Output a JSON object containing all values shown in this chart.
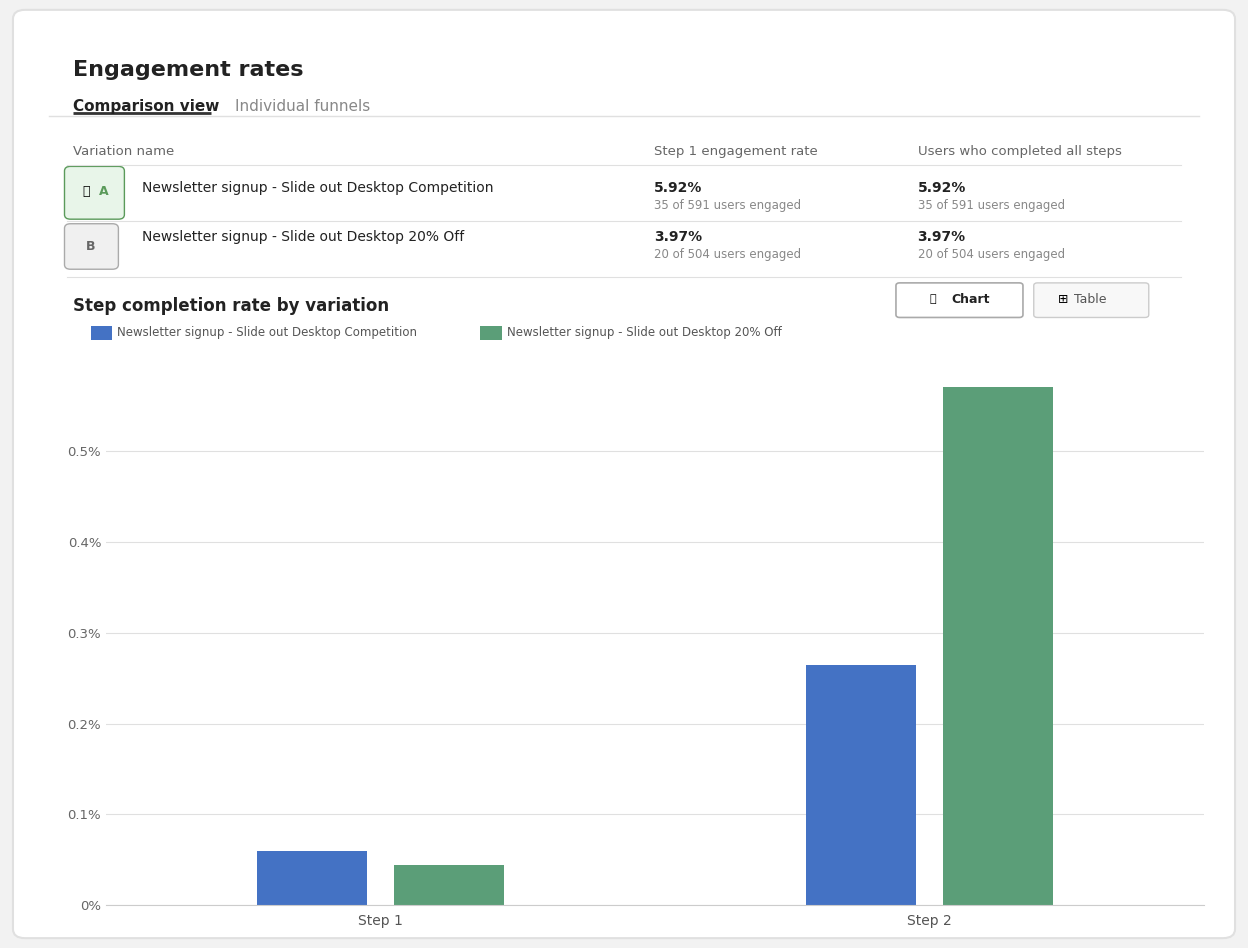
{
  "title": "Engagement rates",
  "tab_active": "Comparison view",
  "tab_inactive": "Individual funnels",
  "table_headers": [
    "Variation name",
    "Step 1 engagement rate",
    "Users who completed all steps"
  ],
  "row_a": {
    "label": "A",
    "name": "Newsletter signup - Slide out Desktop Competition",
    "step1_pct": "5.92%",
    "step1_sub": "35 of 591 users engaged",
    "completed_pct": "5.92%",
    "completed_sub": "35 of 591 users engaged",
    "icon_color": "#5a9a5a",
    "badge_bg": "#e8f5e9"
  },
  "row_b": {
    "label": "B",
    "name": "Newsletter signup - Slide out Desktop 20% Off",
    "step1_pct": "3.97%",
    "step1_sub": "20 of 504 users engaged",
    "completed_pct": "3.97%",
    "completed_sub": "20 of 504 users engaged",
    "icon_color": "#888888",
    "badge_bg": "#f0f0f0"
  },
  "chart_title": "Step completion rate by variation",
  "legend_a": "Newsletter signup - Slide out Desktop Competition",
  "legend_b": "Newsletter signup - Slide out Desktop 20% Off",
  "bar_color_a": "#4472c4",
  "bar_color_b": "#5b9e78",
  "steps": [
    "Step 1",
    "Step 2"
  ],
  "values_a": [
    0.0006,
    0.00265
  ],
  "values_b": [
    0.00044,
    0.0057
  ],
  "yticks": [
    0.0,
    0.001,
    0.002,
    0.003,
    0.004,
    0.005
  ],
  "ytick_labels": [
    "0%",
    "0.1%",
    "0.2%",
    "0.3%",
    "0.4%",
    "0.5%"
  ],
  "ylim": [
    0,
    0.006
  ],
  "bg_color": "#ffffff",
  "panel_bg": "#f9f9f9",
  "border_color": "#e0e0e0",
  "text_color_dark": "#222222",
  "text_color_light": "#888888",
  "button_chart_text": "Chart",
  "button_table_text": "Table"
}
